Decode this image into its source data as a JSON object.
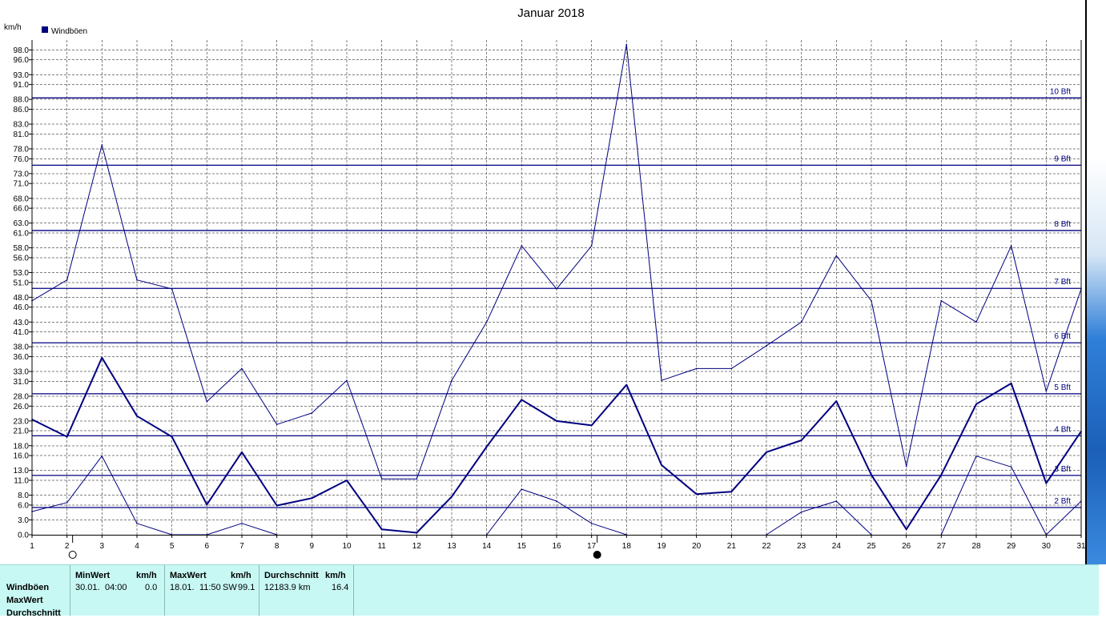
{
  "chart_data": {
    "type": "line",
    "title": "Januar 2018",
    "ylabel": "km/h",
    "legend": "Windböen",
    "legend_color": "#000080",
    "x": [
      1,
      2,
      3,
      4,
      5,
      6,
      7,
      8,
      9,
      10,
      11,
      12,
      13,
      14,
      15,
      16,
      17,
      18,
      19,
      20,
      21,
      22,
      23,
      24,
      25,
      26,
      27,
      28,
      29,
      30,
      31
    ],
    "ylim": [
      0,
      100
    ],
    "ytick_labels": [
      "0.0",
      "3.0",
      "6.0",
      "8.0",
      "11.0",
      "13.0",
      "16.0",
      "18.0",
      "21.0",
      "23.0",
      "26.0",
      "28.0",
      "31.0",
      "33.0",
      "36.0",
      "38.0",
      "41.0",
      "43.0",
      "46.0",
      "48.0",
      "51.0",
      "53.0",
      "56.0",
      "58.0",
      "61.0",
      "63.0",
      "66.0",
      "68.0",
      "71.0",
      "73.0",
      "76.0",
      "78.0",
      "81.0",
      "83.0",
      "86.0",
      "88.0",
      "91.0",
      "93.0",
      "96.0",
      "98.0"
    ],
    "series": [
      {
        "role": "max",
        "values": [
          47.3,
          51.5,
          78.8,
          51.5,
          49.7,
          26.9,
          33.6,
          22.3,
          24.6,
          31.2,
          11.3,
          11.3,
          31.2,
          43.0,
          58.4,
          49.7,
          58.4,
          99.1,
          31.2,
          33.6,
          33.6,
          38.2,
          43.0,
          56.4,
          47.3,
          13.8,
          47.3,
          43.0,
          58.4,
          29.0,
          49.7
        ],
        "stroke_width": 1
      },
      {
        "role": "average",
        "values": [
          23.3,
          19.8,
          35.8,
          24.0,
          19.8,
          6.1,
          16.7,
          5.9,
          7.4,
          11.0,
          1.1,
          0.4,
          7.7,
          17.8,
          27.3,
          23.0,
          22.1,
          30.3,
          14.1,
          8.2,
          8.7,
          16.7,
          19.1,
          27.0,
          12.1,
          1.1,
          12.1,
          26.4,
          30.6,
          10.4,
          20.9
        ],
        "stroke_width": 2
      },
      {
        "role": "min",
        "values": [
          4.7,
          6.5,
          15.9,
          2.3,
          0.0,
          0.0,
          2.3,
          0.0,
          null,
          null,
          null,
          null,
          null,
          0.0,
          9.2,
          6.8,
          2.3,
          0.0,
          null,
          null,
          null,
          0.0,
          4.6,
          6.8,
          0.0,
          null,
          0.0,
          15.9,
          13.7,
          0.0,
          6.8
        ],
        "stroke_width": 1
      }
    ],
    "beaufort_lines": [
      {
        "label": "2 Bft",
        "value": 5.5
      },
      {
        "label": "3 Bft",
        "value": 12.0
      },
      {
        "label": "4 Bft",
        "value": 20.0
      },
      {
        "label": "5 Bft",
        "value": 28.5
      },
      {
        "label": "6 Bft",
        "value": 38.8
      },
      {
        "label": "7 Bft",
        "value": 49.8
      },
      {
        "label": "8 Bft",
        "value": 61.5
      },
      {
        "label": "9 Bft",
        "value": 74.7
      },
      {
        "label": "10 Bft",
        "value": 88.3
      }
    ],
    "grid": true,
    "colors": {
      "line": "#000080",
      "grid": "#808080",
      "beaufort": "#000080"
    },
    "markers": [
      {
        "type": "new-moon-icon",
        "day": 2
      },
      {
        "type": "full-moon-icon",
        "day": 17
      }
    ]
  },
  "stats": {
    "rows": [
      "Windböen",
      "MaxWert",
      "Durchschnitt"
    ],
    "min_header": "MinWert",
    "min_unit": "km/h",
    "min_date": "30.01.",
    "min_time": "04:00",
    "min_value": "0.0",
    "max_header": "MaxWert",
    "max_unit": "km/h",
    "max_date": "18.01.",
    "max_time": "11:50",
    "max_dir": "SW",
    "max_value": "99.1",
    "avg_header": "Durchschnitt",
    "avg_unit": "km/h",
    "avg_distance": "12183.9 km",
    "avg_value": "16.4"
  }
}
